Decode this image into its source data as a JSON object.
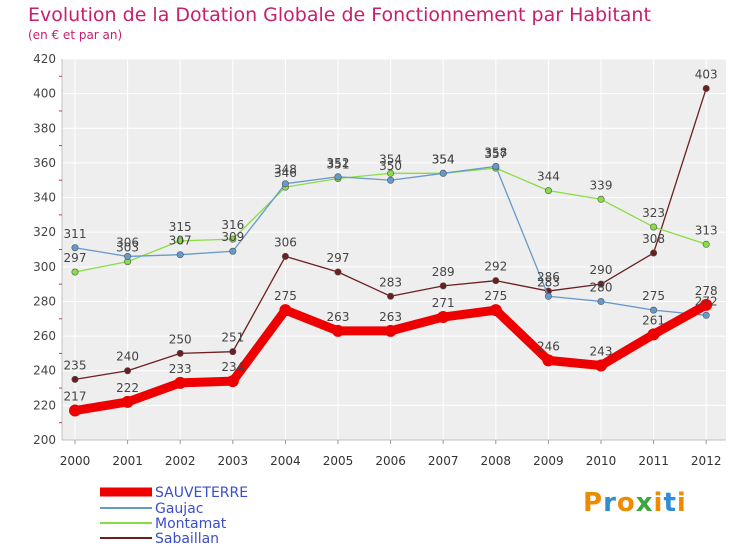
{
  "header": {
    "title": "Evolution de la Dotation Globale de Fonctionnement par Habitant",
    "subtitle": "(en € et par an)"
  },
  "logo": {
    "text": "Proxiti"
  },
  "chart_data": {
    "type": "line",
    "title": "Evolution de la Dotation Globale de Fonctionnement par Habitant",
    "subtitle": "(en € et par an)",
    "xlabel": "",
    "ylabel": "",
    "x": [
      "2000",
      "2001",
      "2002",
      "2003",
      "2004",
      "2005",
      "2006",
      "2007",
      "2008",
      "2009",
      "2010",
      "2011",
      "2012"
    ],
    "ylim": [
      200,
      420
    ],
    "yticks": [
      200,
      220,
      240,
      260,
      280,
      300,
      320,
      340,
      360,
      380,
      400,
      420
    ],
    "grid": true,
    "legend_position": "bottom-left",
    "series": [
      {
        "name": "SAUVETERRE",
        "color": "#ee0000",
        "values": [
          217,
          222,
          233,
          234,
          275,
          263,
          263,
          271,
          275,
          246,
          243,
          261,
          278
        ],
        "labels": [
          "217",
          "222",
          "233",
          "234",
          "275",
          "263",
          "263",
          "271",
          "275",
          "246",
          "243",
          "261",
          "278"
        ]
      },
      {
        "name": "Gaujac",
        "color": "#6699cc",
        "values": [
          311,
          306,
          307,
          309,
          348,
          352,
          350,
          354,
          358,
          283,
          280,
          275,
          272
        ],
        "labels": [
          "311",
          "306",
          "307",
          "309",
          "348",
          "352",
          "350",
          "354",
          "358",
          "283",
          "280",
          "275",
          "272"
        ]
      },
      {
        "name": "Montamat",
        "color": "#88dd44",
        "values": [
          297,
          303,
          315,
          316,
          346,
          351,
          354,
          354,
          357,
          344,
          339,
          323,
          313
        ],
        "labels": [
          "297",
          "303",
          "315",
          "316",
          "346",
          "351",
          "354",
          "354",
          "357",
          "344",
          "339",
          "323",
          "313"
        ]
      },
      {
        "name": "Sabaillan",
        "color": "#6b1f1f",
        "values": [
          235,
          240,
          250,
          251,
          306,
          297,
          283,
          289,
          292,
          286,
          290,
          308,
          403
        ],
        "labels": [
          "235",
          "240",
          "250",
          "251",
          "306",
          "297",
          "283",
          "289",
          "292",
          "286",
          "290",
          "308",
          "403"
        ]
      }
    ]
  }
}
